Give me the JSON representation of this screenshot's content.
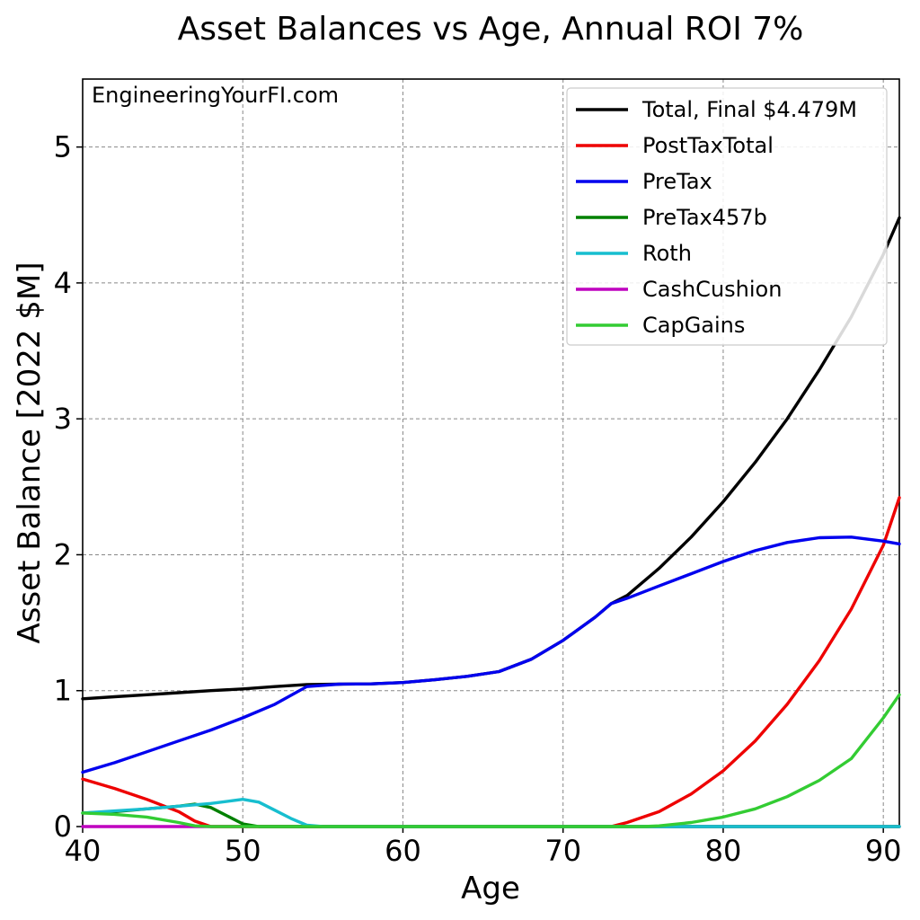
{
  "chart_data": {
    "type": "line",
    "title": "Asset Balances vs Age, Annual ROI 7%",
    "xlabel": "Age",
    "ylabel": "Asset Balance [2022 $M]",
    "xlim": [
      40,
      91
    ],
    "ylim": [
      0,
      5.5
    ],
    "xticks": [
      40,
      50,
      60,
      70,
      80,
      90
    ],
    "yticks": [
      0,
      1,
      2,
      3,
      4,
      5
    ],
    "grid": true,
    "legend_position": "top-right",
    "annotation": "EngineeringYourFI.com",
    "series": [
      {
        "name": "Total, Final $4.479M",
        "color": "#000000",
        "points": [
          [
            40,
            0.94
          ],
          [
            42,
            0.955
          ],
          [
            44,
            0.97
          ],
          [
            46,
            0.985
          ],
          [
            48,
            1.0
          ],
          [
            50,
            1.013
          ],
          [
            52,
            1.03
          ],
          [
            54,
            1.045
          ],
          [
            56,
            1.048
          ],
          [
            58,
            1.05
          ],
          [
            60,
            1.06
          ],
          [
            62,
            1.08
          ],
          [
            64,
            1.105
          ],
          [
            66,
            1.14
          ],
          [
            68,
            1.23
          ],
          [
            70,
            1.37
          ],
          [
            72,
            1.54
          ],
          [
            73,
            1.64
          ],
          [
            74,
            1.7
          ],
          [
            76,
            1.9
          ],
          [
            78,
            2.13
          ],
          [
            80,
            2.39
          ],
          [
            82,
            2.68
          ],
          [
            84,
            3.0
          ],
          [
            86,
            3.36
          ],
          [
            88,
            3.75
          ],
          [
            90,
            4.21
          ],
          [
            91,
            4.479
          ]
        ]
      },
      {
        "name": "PostTaxTotal",
        "color": "#ee0000",
        "points": [
          [
            40,
            0.35
          ],
          [
            42,
            0.28
          ],
          [
            44,
            0.2
          ],
          [
            46,
            0.11
          ],
          [
            47,
            0.04
          ],
          [
            48,
            0.0
          ],
          [
            50,
            0.0
          ],
          [
            60,
            0.0
          ],
          [
            70,
            0.0
          ],
          [
            73,
            0.0
          ],
          [
            74,
            0.03
          ],
          [
            76,
            0.11
          ],
          [
            78,
            0.24
          ],
          [
            80,
            0.41
          ],
          [
            82,
            0.63
          ],
          [
            84,
            0.9
          ],
          [
            86,
            1.22
          ],
          [
            88,
            1.6
          ],
          [
            90,
            2.07
          ],
          [
            91,
            2.42
          ]
        ]
      },
      {
        "name": "PreTax",
        "color": "#0000ee",
        "points": [
          [
            40,
            0.4
          ],
          [
            42,
            0.47
          ],
          [
            44,
            0.55
          ],
          [
            46,
            0.63
          ],
          [
            48,
            0.71
          ],
          [
            50,
            0.8
          ],
          [
            52,
            0.9
          ],
          [
            54,
            1.03
          ],
          [
            56,
            1.048
          ],
          [
            58,
            1.05
          ],
          [
            60,
            1.06
          ],
          [
            62,
            1.08
          ],
          [
            64,
            1.105
          ],
          [
            66,
            1.14
          ],
          [
            68,
            1.23
          ],
          [
            70,
            1.37
          ],
          [
            72,
            1.54
          ],
          [
            73,
            1.64
          ],
          [
            74,
            1.68
          ],
          [
            76,
            1.77
          ],
          [
            78,
            1.86
          ],
          [
            80,
            1.95
          ],
          [
            82,
            2.03
          ],
          [
            84,
            2.09
          ],
          [
            86,
            2.125
          ],
          [
            88,
            2.13
          ],
          [
            90,
            2.1
          ],
          [
            91,
            2.08
          ]
        ]
      },
      {
        "name": "PreTax457b",
        "color": "#008000",
        "points": [
          [
            40,
            0.1
          ],
          [
            42,
            0.11
          ],
          [
            44,
            0.13
          ],
          [
            46,
            0.15
          ],
          [
            47,
            0.165
          ],
          [
            48,
            0.14
          ],
          [
            49,
            0.08
          ],
          [
            50,
            0.02
          ],
          [
            51,
            0.0
          ],
          [
            60,
            0.0
          ],
          [
            70,
            0.0
          ],
          [
            80,
            0.0
          ],
          [
            91,
            0.0
          ]
        ]
      },
      {
        "name": "Roth",
        "color": "#17becf",
        "points": [
          [
            40,
            0.1
          ],
          [
            42,
            0.115
          ],
          [
            44,
            0.13
          ],
          [
            46,
            0.15
          ],
          [
            48,
            0.17
          ],
          [
            50,
            0.2
          ],
          [
            51,
            0.18
          ],
          [
            52,
            0.12
          ],
          [
            53,
            0.06
          ],
          [
            54,
            0.01
          ],
          [
            55,
            0.0
          ],
          [
            60,
            0.0
          ],
          [
            70,
            0.0
          ],
          [
            80,
            0.0
          ],
          [
            91,
            0.0
          ]
        ]
      },
      {
        "name": "CashCushion",
        "color": "#bf00bf",
        "points": [
          [
            40,
            0.0
          ],
          [
            50,
            0.0
          ],
          [
            60,
            0.0
          ],
          [
            70,
            0.0
          ],
          [
            80,
            0.0
          ],
          [
            91,
            0.0
          ]
        ]
      },
      {
        "name": "CapGains",
        "color": "#33cc33",
        "points": [
          [
            40,
            0.1
          ],
          [
            42,
            0.09
          ],
          [
            44,
            0.07
          ],
          [
            46,
            0.03
          ],
          [
            47,
            0.005
          ],
          [
            48,
            0.0
          ],
          [
            60,
            0.0
          ],
          [
            70,
            0.0
          ],
          [
            75,
            0.0
          ],
          [
            76,
            0.005
          ],
          [
            78,
            0.03
          ],
          [
            80,
            0.07
          ],
          [
            82,
            0.13
          ],
          [
            84,
            0.22
          ],
          [
            86,
            0.34
          ],
          [
            88,
            0.5
          ],
          [
            90,
            0.8
          ],
          [
            91,
            0.97
          ]
        ]
      }
    ]
  }
}
